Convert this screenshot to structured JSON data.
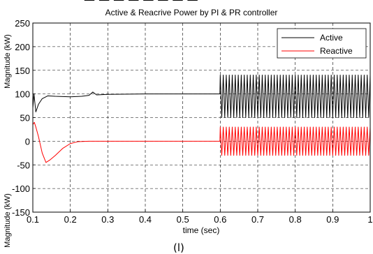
{
  "top_text": "— — — — — — — —",
  "caption": "(ا)",
  "chart_data": {
    "type": "line",
    "title": "Active & Reacrive Power by PI & PR controller",
    "xlabel": "time (sec)",
    "ylabel_upper": "Magnitude (kW)",
    "ylabel_lower": "Magnitude (kW)",
    "xlim": [
      0.1,
      1.0
    ],
    "ylim": [
      -150,
      250
    ],
    "xticks": [
      "0.1",
      "0.2",
      "0.3",
      "0.4",
      "0.5",
      "0.6",
      "0.7",
      "0.8",
      "0.9",
      "1"
    ],
    "yticks": [
      "250",
      "200",
      "150",
      "100",
      "50",
      "0",
      "-50",
      "-100",
      "-150"
    ],
    "grid": true,
    "legend_position": "top-right",
    "series": [
      {
        "name": "Active",
        "color": "#000000",
        "points": [
          [
            0.1,
            70
          ],
          [
            0.103,
            100
          ],
          [
            0.108,
            62
          ],
          [
            0.115,
            78
          ],
          [
            0.125,
            90
          ],
          [
            0.14,
            96
          ],
          [
            0.16,
            95
          ],
          [
            0.2,
            94
          ],
          [
            0.23,
            95
          ],
          [
            0.25,
            97
          ],
          [
            0.26,
            104
          ],
          [
            0.27,
            98
          ],
          [
            0.3,
            99
          ],
          [
            0.4,
            100
          ],
          [
            0.5,
            100
          ],
          [
            0.599,
            100
          ]
        ],
        "oscillation": {
          "start": 0.6,
          "end": 1.0,
          "center": 95,
          "amplitude": 45,
          "cycles": 50
        }
      },
      {
        "name": "Reactive",
        "color": "#ff0000",
        "points": [
          [
            0.1,
            35
          ],
          [
            0.104,
            40
          ],
          [
            0.108,
            30
          ],
          [
            0.115,
            10
          ],
          [
            0.125,
            -25
          ],
          [
            0.135,
            -45
          ],
          [
            0.145,
            -40
          ],
          [
            0.16,
            -30
          ],
          [
            0.18,
            -15
          ],
          [
            0.2,
            -5
          ],
          [
            0.22,
            -1
          ],
          [
            0.25,
            0
          ],
          [
            0.35,
            0
          ],
          [
            0.5,
            0
          ],
          [
            0.599,
            0
          ]
        ],
        "oscillation": {
          "start": 0.6,
          "end": 1.0,
          "center": 0,
          "amplitude": 30,
          "cycles": 50
        }
      }
    ]
  }
}
